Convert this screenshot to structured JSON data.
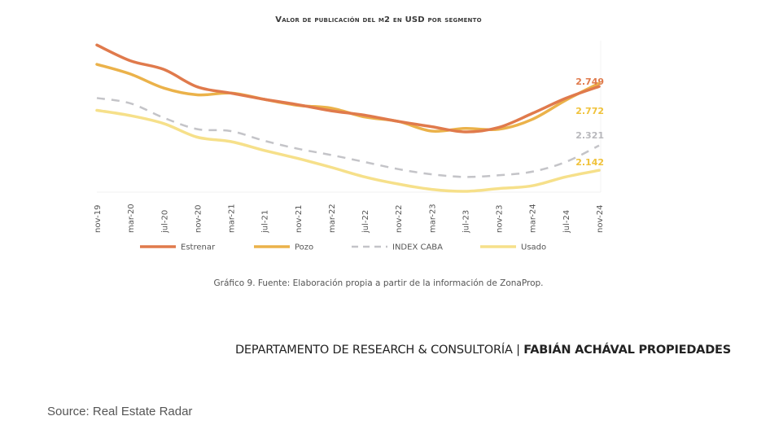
{
  "chart_data": {
    "type": "line",
    "title": "Valor de publicación del m2 en USD por segmento",
    "xlabel": "",
    "ylabel": "",
    "grid": false,
    "legend_position": "bottom",
    "x_tick_labels": [
      "nov-19",
      "mar-20",
      "jul-20",
      "nov-20",
      "mar-21",
      "jul-21",
      "nov-21",
      "mar-22",
      "jul-22",
      "nov-22",
      "mar-23",
      "jul-23",
      "nov-23",
      "mar-24",
      "jul-24",
      "nov-24"
    ],
    "ylim": [
      1990,
      3080
    ],
    "x": [
      "nov-19",
      "mar-20",
      "jul-20",
      "nov-20",
      "mar-21",
      "jul-21",
      "nov-21",
      "mar-22",
      "jul-22",
      "nov-22",
      "mar-23",
      "jul-23",
      "nov-23",
      "mar-24",
      "jul-24",
      "nov-24"
    ],
    "series": [
      {
        "name": "Estrenar",
        "color": "#e07a4c",
        "dash": false,
        "end_label": "2.749",
        "values": [
          3049,
          2935,
          2872,
          2746,
          2701,
          2656,
          2617,
          2573,
          2541,
          2496,
          2458,
          2420,
          2452,
          2553,
          2663,
          2749
        ]
      },
      {
        "name": "Pozo",
        "color": "#ebb24a",
        "dash": false,
        "end_label": "2.772",
        "values": [
          2909,
          2839,
          2737,
          2688,
          2701,
          2656,
          2612,
          2592,
          2528,
          2496,
          2426,
          2445,
          2439,
          2510,
          2649,
          2772
        ]
      },
      {
        "name": "INDEX CABA",
        "color": "#c4c4c8",
        "dash": true,
        "end_label": "2.321",
        "values": [
          2665,
          2627,
          2522,
          2440,
          2426,
          2356,
          2298,
          2253,
          2202,
          2151,
          2113,
          2094,
          2106,
          2132,
          2202,
          2321
        ]
      },
      {
        "name": "Usado",
        "color": "#f6e08a",
        "dash": false,
        "end_label": "2.142",
        "values": [
          2576,
          2538,
          2480,
          2382,
          2350,
          2286,
          2228,
          2164,
          2094,
          2043,
          2004,
          1990,
          2010,
          2030,
          2094,
          2142
        ]
      }
    ]
  },
  "caption": "Gráfico 9. Fuente: Elaboración propia a partir de la información de ZonaProp.",
  "department": {
    "prefix": "DEPARTAMENTO DE RESEARCH & CONSULTORÍA | ",
    "brand": "FABIÁN ACHÁVAL PROPIEDADES"
  },
  "source": "Source: Real Estate Radar"
}
